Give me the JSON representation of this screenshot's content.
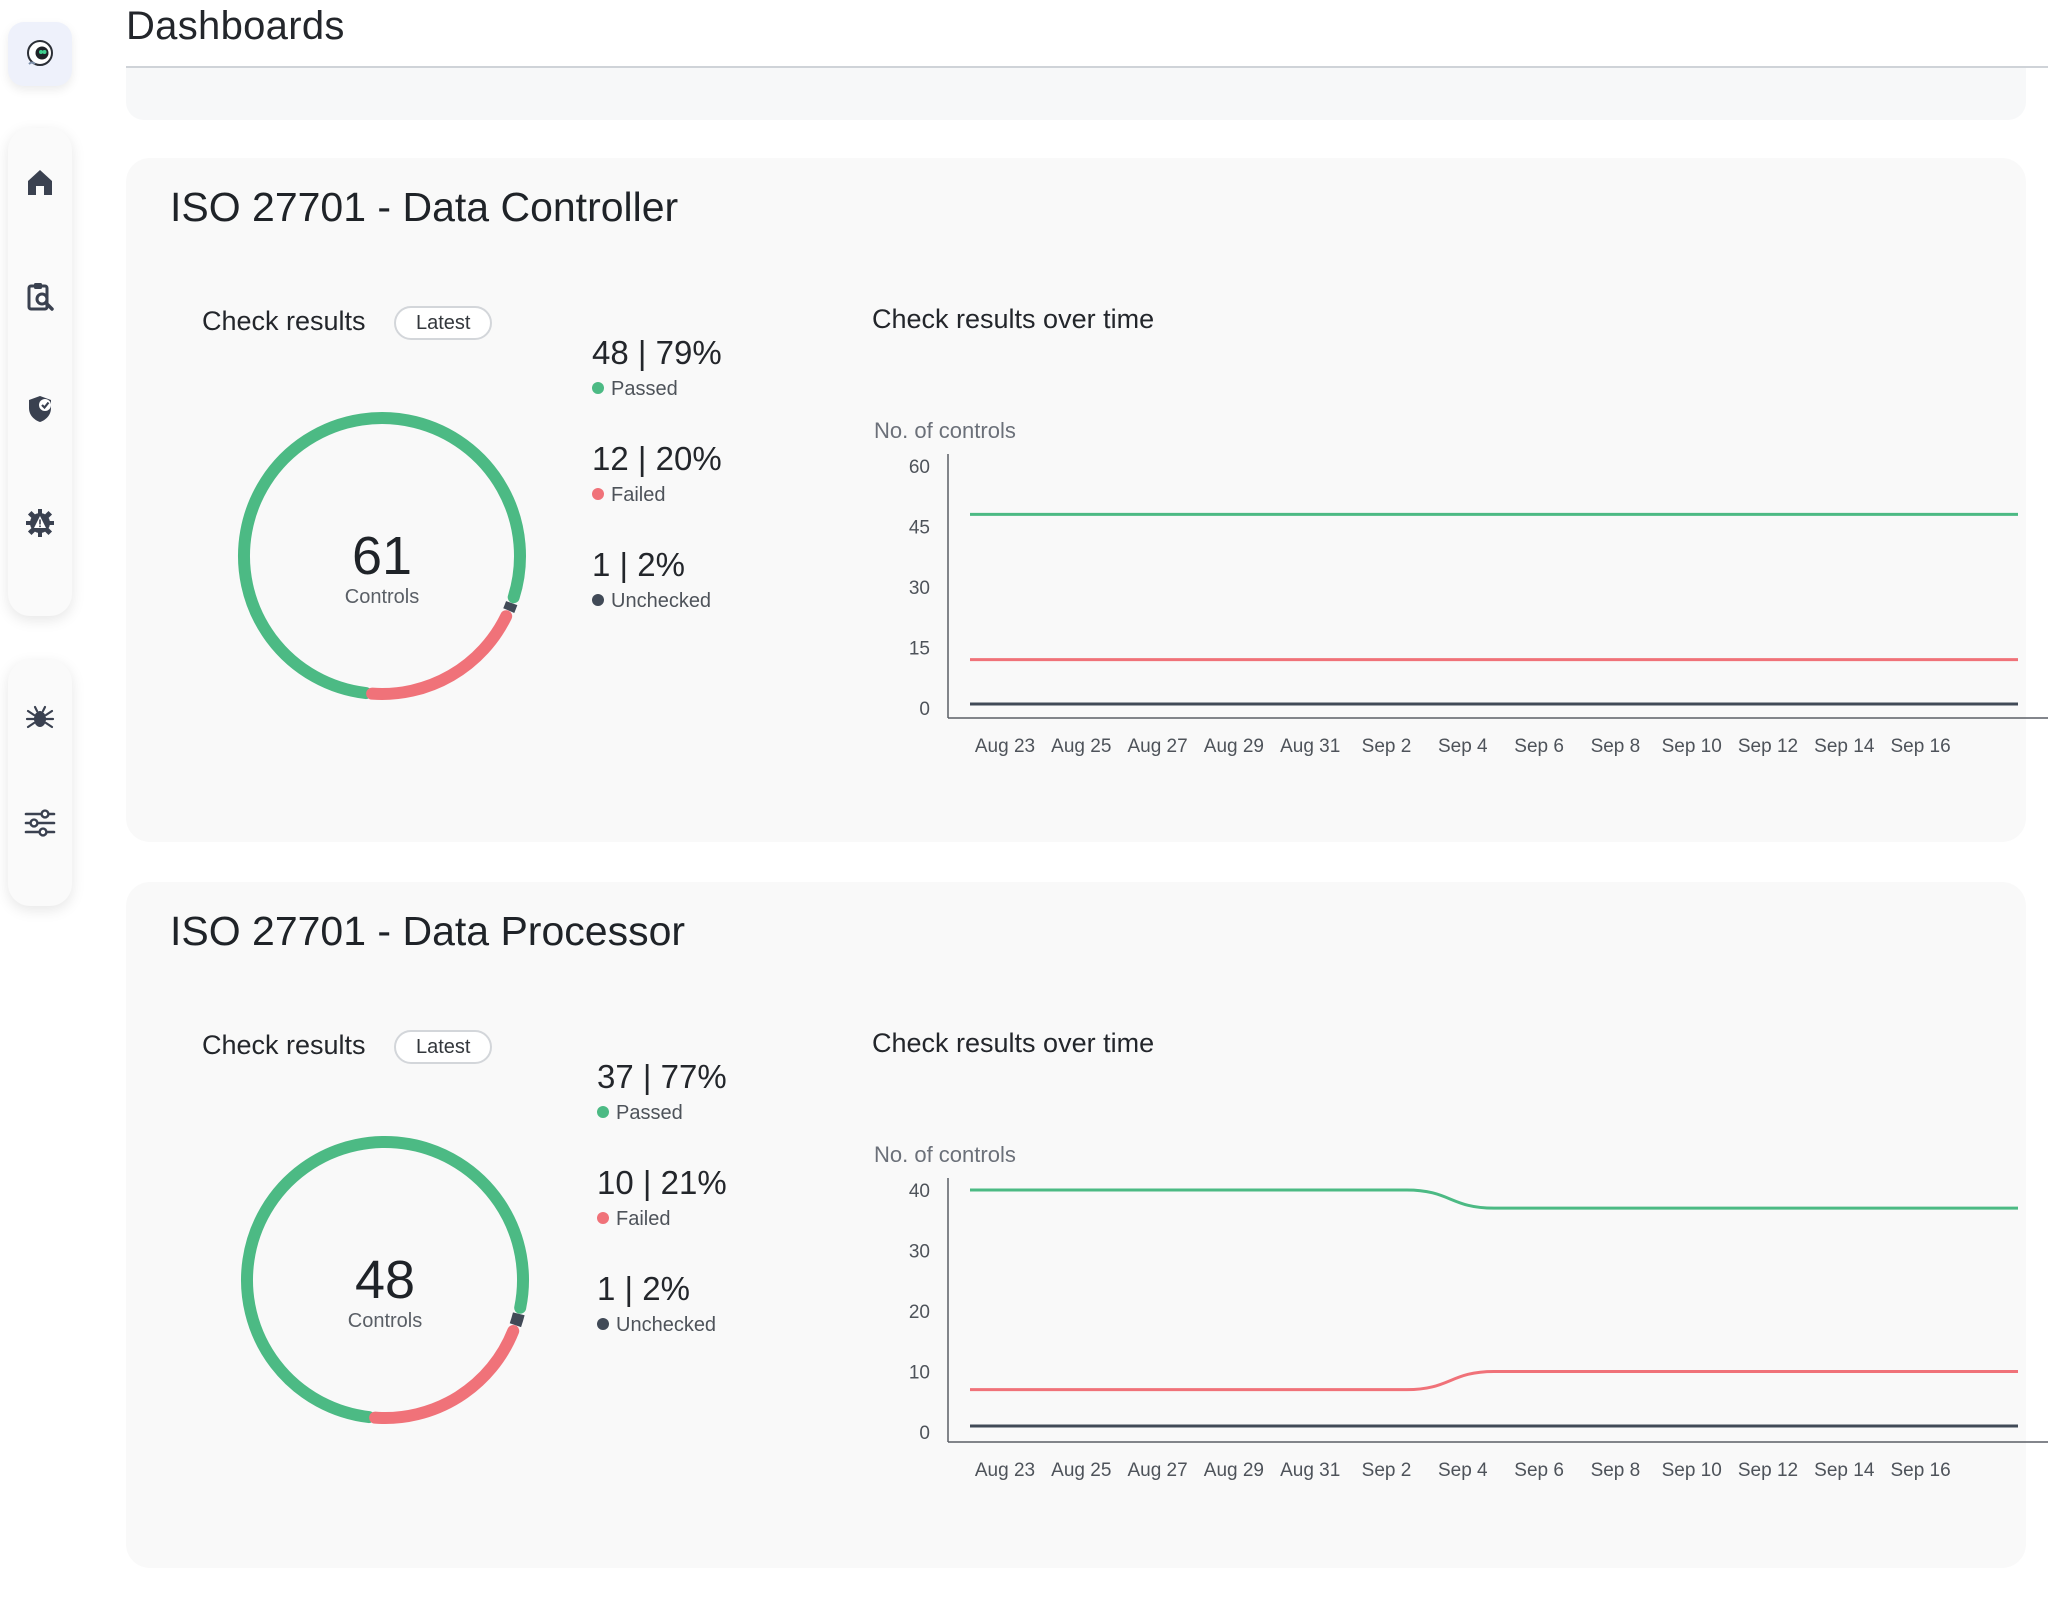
{
  "page": {
    "title": "Dashboards"
  },
  "colors": {
    "passed": "#4cba84",
    "failed": "#f07279",
    "unchecked": "#414a57"
  },
  "sidebar": {
    "logo_icon": "robot-logo-icon",
    "items": [
      {
        "icon": "home-icon"
      },
      {
        "icon": "clipboard-search-icon"
      },
      {
        "icon": "shield-check-icon"
      },
      {
        "icon": "gear-warning-icon"
      },
      {
        "icon": "bug-icon"
      },
      {
        "icon": "sliders-icon"
      }
    ]
  },
  "cards": [
    {
      "title": "ISO 27701 - Data Controller",
      "check_results_label": "Check results",
      "latest_label": "Latest",
      "over_time_label": "Check results over time",
      "total": "61",
      "total_label": "Controls",
      "stats": [
        {
          "value": "48 | 79%",
          "label": "Passed"
        },
        {
          "value": "12 | 20%",
          "label": "Failed"
        },
        {
          "value": "1 | 2%",
          "label": "Unchecked"
        }
      ]
    },
    {
      "title": "ISO 27701 - Data Processor",
      "check_results_label": "Check results",
      "latest_label": "Latest",
      "over_time_label": "Check results over time",
      "total": "48",
      "total_label": "Controls",
      "stats": [
        {
          "value": "37 | 77%",
          "label": "Passed"
        },
        {
          "value": "10 | 21%",
          "label": "Failed"
        },
        {
          "value": "1 | 2%",
          "label": "Unchecked"
        }
      ]
    }
  ],
  "chart_data": [
    {
      "type": "line",
      "ylabel": "No. of controls",
      "ylim": [
        0,
        60
      ],
      "yticks": [
        0,
        15,
        30,
        45,
        60
      ],
      "categories": [
        "Aug 23",
        "Aug 25",
        "Aug 27",
        "Aug 29",
        "Aug 31",
        "Sep 2",
        "Sep 4",
        "Sep 6",
        "Sep 8",
        "Sep 10",
        "Sep 12",
        "Sep 14",
        "Sep 16"
      ],
      "series": [
        {
          "name": "Passed",
          "values": [
            48,
            48,
            48,
            48,
            48,
            48,
            48,
            48,
            48,
            48,
            48,
            48,
            48
          ]
        },
        {
          "name": "Failed",
          "values": [
            12,
            12,
            12,
            12,
            12,
            12,
            12,
            12,
            12,
            12,
            12,
            12,
            12
          ]
        },
        {
          "name": "Unchecked",
          "values": [
            1,
            1,
            1,
            1,
            1,
            1,
            1,
            1,
            1,
            1,
            1,
            1,
            1
          ]
        }
      ],
      "donut": {
        "passed": 48,
        "failed": 12,
        "unchecked": 1
      }
    },
    {
      "type": "line",
      "ylabel": "No. of controls",
      "ylim": [
        0,
        40
      ],
      "yticks": [
        0,
        10,
        20,
        30,
        40
      ],
      "categories": [
        "Aug 23",
        "Aug 25",
        "Aug 27",
        "Aug 29",
        "Aug 31",
        "Sep 2",
        "Sep 4",
        "Sep 6",
        "Sep 8",
        "Sep 10",
        "Sep 12",
        "Sep 14",
        "Sep 16"
      ],
      "series": [
        {
          "name": "Passed",
          "values": [
            40,
            40,
            40,
            40,
            40,
            40,
            37,
            37,
            37,
            37,
            37,
            37,
            37
          ]
        },
        {
          "name": "Failed",
          "values": [
            7,
            7,
            7,
            7,
            7,
            7,
            10,
            10,
            10,
            10,
            10,
            10,
            10
          ]
        },
        {
          "name": "Unchecked",
          "values": [
            1,
            1,
            1,
            1,
            1,
            1,
            1,
            1,
            1,
            1,
            1,
            1,
            1
          ]
        }
      ],
      "donut": {
        "passed": 37,
        "failed": 10,
        "unchecked": 1
      }
    }
  ]
}
